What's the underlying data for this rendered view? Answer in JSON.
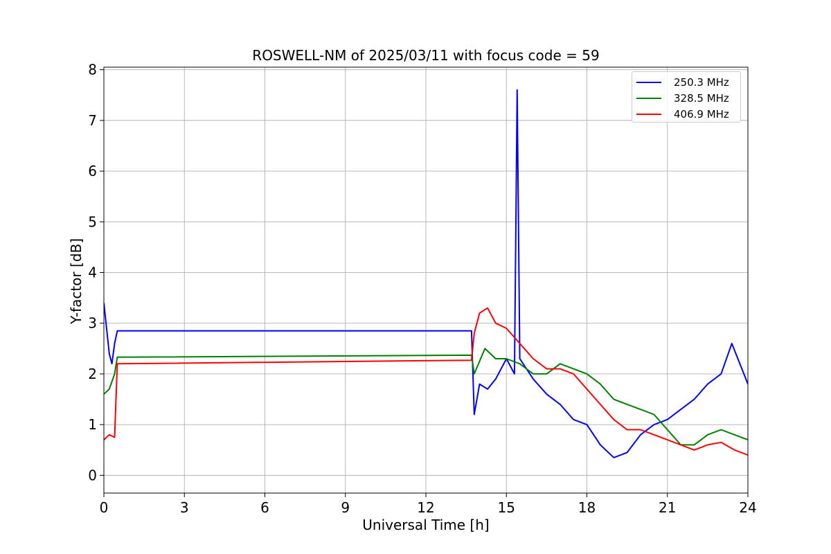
{
  "chart_data": {
    "type": "line",
    "title": "ROSWELL-NM of 2025/03/11 with focus code = 59",
    "xlabel": "Universal Time [h]",
    "ylabel": "Y-factor [dB]",
    "xlim": [
      0,
      24
    ],
    "ylim": [
      -0.35,
      8.05
    ],
    "xticks": [
      "0",
      "3",
      "6",
      "9",
      "12",
      "15",
      "18",
      "21",
      "24"
    ],
    "yticks": [
      "0",
      "1",
      "2",
      "3",
      "4",
      "5",
      "6",
      "7",
      "8"
    ],
    "grid": true,
    "legend_position": "top-right",
    "series": [
      {
        "name": "250.3 MHz",
        "color": "#0000ff",
        "x": [
          0.0,
          0.1,
          0.2,
          0.3,
          0.4,
          0.5,
          13.7,
          13.8,
          14.0,
          14.3,
          14.6,
          15.0,
          15.3,
          15.4,
          15.5,
          16.0,
          16.5,
          17.0,
          17.5,
          18.0,
          18.5,
          19.0,
          19.5,
          20.0,
          20.5,
          21.0,
          21.5,
          22.0,
          22.5,
          23.0,
          23.4,
          24.0
        ],
        "y": [
          3.4,
          2.9,
          2.4,
          2.2,
          2.6,
          2.85,
          2.85,
          1.2,
          1.8,
          1.7,
          1.9,
          2.3,
          2.0,
          7.6,
          2.3,
          1.9,
          1.6,
          1.4,
          1.1,
          1.0,
          0.6,
          0.35,
          0.45,
          0.8,
          1.0,
          1.1,
          1.3,
          1.5,
          1.8,
          2.0,
          2.6,
          1.8
        ]
      },
      {
        "name": "328.5 MHz",
        "color": "#008000",
        "x": [
          0.0,
          0.2,
          0.4,
          0.5,
          13.7,
          13.8,
          14.2,
          14.6,
          15.0,
          15.5,
          16.0,
          16.5,
          17.0,
          17.5,
          18.0,
          18.5,
          19.0,
          19.5,
          20.0,
          20.5,
          21.0,
          21.5,
          22.0,
          22.5,
          23.0,
          23.5,
          24.0
        ],
        "y": [
          1.6,
          1.7,
          2.0,
          2.33,
          2.37,
          2.0,
          2.5,
          2.3,
          2.3,
          2.2,
          2.0,
          2.0,
          2.2,
          2.1,
          2.0,
          1.8,
          1.5,
          1.4,
          1.3,
          1.2,
          0.9,
          0.6,
          0.6,
          0.8,
          0.9,
          0.8,
          0.7
        ]
      },
      {
        "name": "406.9 MHz",
        "color": "#ff0000",
        "x": [
          0.0,
          0.2,
          0.4,
          0.5,
          13.7,
          13.8,
          14.0,
          14.3,
          14.6,
          15.0,
          15.5,
          16.0,
          16.5,
          17.0,
          17.5,
          18.0,
          18.5,
          19.0,
          19.5,
          20.0,
          20.5,
          21.0,
          21.5,
          22.0,
          22.5,
          23.0,
          23.5,
          24.0
        ],
        "y": [
          0.7,
          0.8,
          0.75,
          2.2,
          2.27,
          2.8,
          3.2,
          3.3,
          3.0,
          2.9,
          2.6,
          2.3,
          2.1,
          2.1,
          2.0,
          1.7,
          1.4,
          1.1,
          0.9,
          0.9,
          0.8,
          0.7,
          0.6,
          0.5,
          0.6,
          0.65,
          0.5,
          0.4
        ]
      }
    ]
  }
}
